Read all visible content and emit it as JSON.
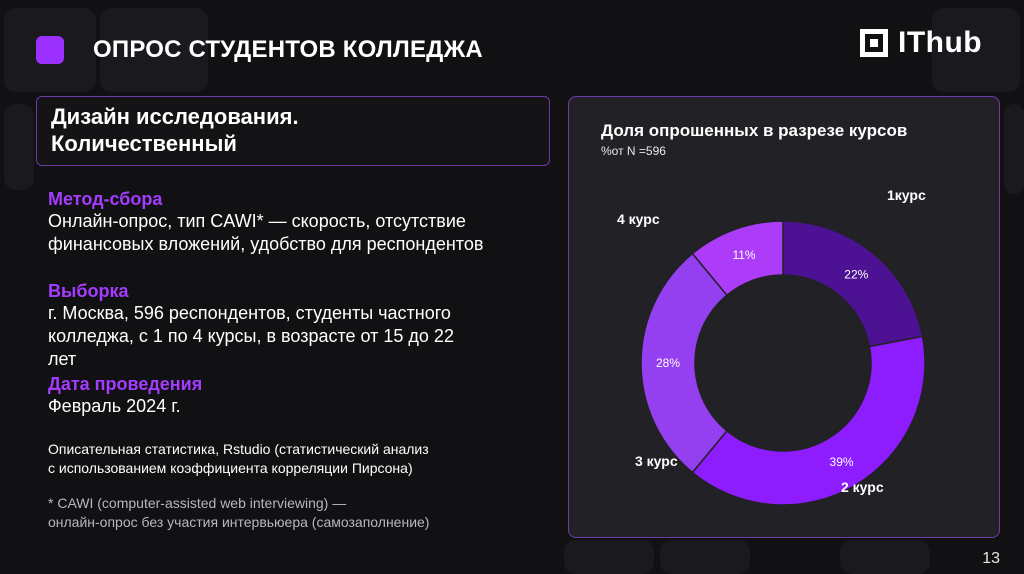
{
  "header": {
    "title": "ОПРОС СТУДЕНТОВ КОЛЛЕДЖА",
    "logo_text": "IThub"
  },
  "design": {
    "title_line1": "Дизайн исследования.",
    "title_line2": "Количественный"
  },
  "method": {
    "heading": "Метод-сбора",
    "line1": "Онлайн-опрос, тип CAWI* — скорость, отсутствие",
    "line2": "финансовых вложений, удобство для респондентов"
  },
  "sample": {
    "heading": "Выборка",
    "line1": "г. Москва, 596 респондентов, студенты частного",
    "line2": "колледжа, с 1 по 4 курсы, в возрасте от 15 до 22",
    "line3": "лет"
  },
  "date": {
    "heading": "Дата проведения",
    "value": "Февраль 2024 г."
  },
  "stats": {
    "line1": "Описательная статистика, Rstudio (статистический анализ",
    "line2": "с использованием коэффициента корреляции Пирсона)"
  },
  "footnote": {
    "line1": "* CAWI (computer-assisted web interviewing) —",
    "line2": "онлайн-опрос без участия интервьюера (самозаполнение)"
  },
  "page_number": "13",
  "chart_data": {
    "type": "pie",
    "title": "Доля опрошенных в разрезе курсов",
    "subtitle": "%от N =596",
    "donut": true,
    "categories": [
      "1курс",
      "2 курс",
      "3 курс",
      "4 курс"
    ],
    "values": [
      22,
      39,
      28,
      11
    ],
    "value_labels": [
      "22%",
      "39%",
      "28%",
      "11%"
    ],
    "colors": [
      "#4d1294",
      "#8d1cff",
      "#9440f0",
      "#ad3cf9"
    ]
  }
}
